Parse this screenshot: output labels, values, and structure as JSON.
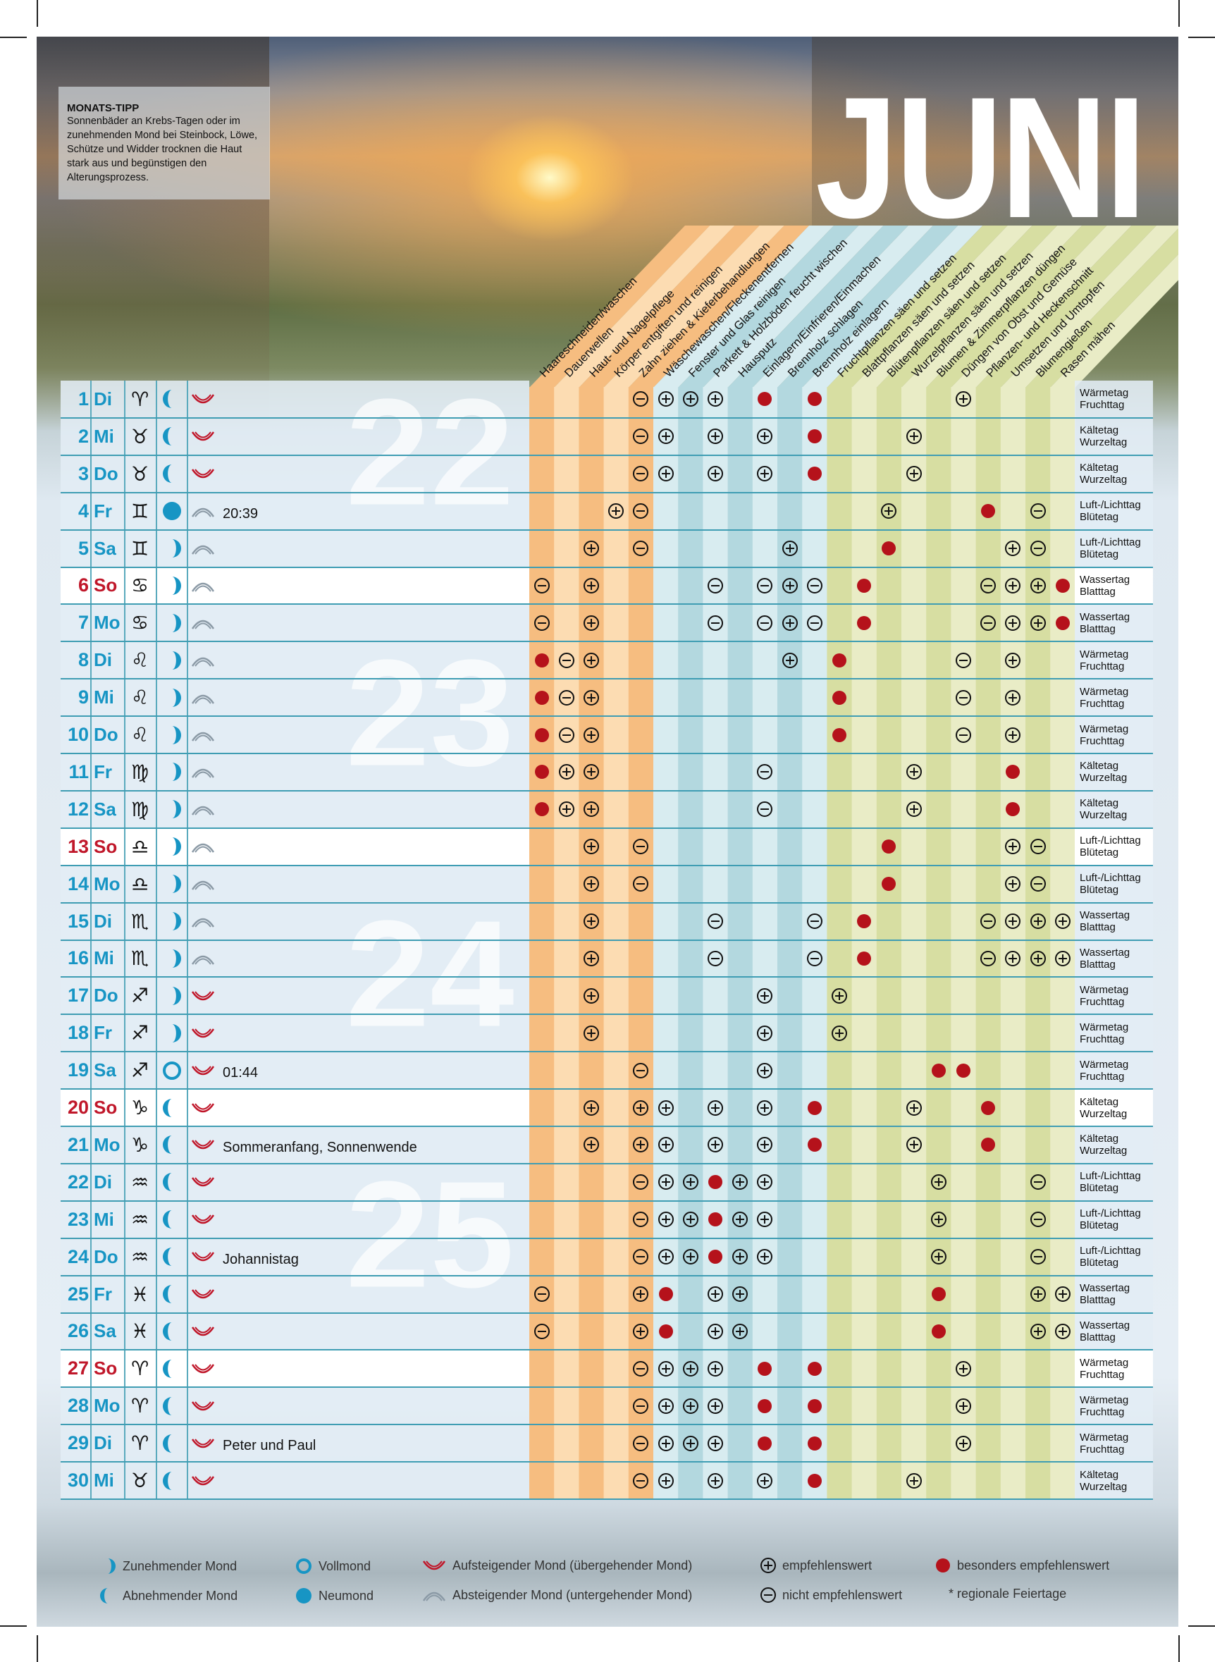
{
  "title": "JUNI",
  "tip": {
    "heading": "MONATS-TIPP",
    "text": "Sonnenbäder an Krebs-Tagen oder im zunehmenden Mond bei Steinbock, Löwe, Schütze und Widder trocknen die Haut stark aus und begünstigen den Alterungsprozess."
  },
  "colors": {
    "accent": "#1795c4",
    "sunday": "#c0172a",
    "red_dot": "#b5121b",
    "orange_dark": "#f6bd80",
    "orange_light": "#fcdcb2",
    "blue_dark": "#b3d8df",
    "blue_light": "#d8ecf0",
    "green_dark": "#d7dea2",
    "green_light": "#e9ecc6"
  },
  "columns": [
    {
      "label": "Haareschneiden/waschen",
      "group": "orange"
    },
    {
      "label": "Dauerwellen",
      "group": "orange"
    },
    {
      "label": "Haut- und Nagelpflege",
      "group": "orange"
    },
    {
      "label": "Körper entgiften und reinigen",
      "group": "orange"
    },
    {
      "label": "Zahn ziehen & Kieferbehandlungen",
      "group": "orange"
    },
    {
      "label": "Wäschewaschen/Fleckenentfernen",
      "group": "blue"
    },
    {
      "label": "Fenster und Glas reinigen",
      "group": "blue"
    },
    {
      "label": "Parkett & Holzböden feucht wischen",
      "group": "blue"
    },
    {
      "label": "Hausputz",
      "group": "blue"
    },
    {
      "label": "Einlagern/Einfrieren/Einmachen",
      "group": "blue"
    },
    {
      "label": "Brennholz schlagen",
      "group": "blue"
    },
    {
      "label": "Brennholz einlagern",
      "group": "blue"
    },
    {
      "label": "Fruchtpflanzen säen und setzen",
      "group": "green"
    },
    {
      "label": "Blattpflanzen säen und setzen",
      "group": "green"
    },
    {
      "label": "Blütenpflanzen säen und setzen",
      "group": "green"
    },
    {
      "label": "Wurzelpflanzen säen und setzen",
      "group": "green"
    },
    {
      "label": "Blumen & Zimmerpflanzen düngen",
      "group": "green"
    },
    {
      "label": "Düngen von Obst und Gemüse",
      "group": "green"
    },
    {
      "label": "Pflanzen- und Heckenschnitt",
      "group": "green"
    },
    {
      "label": "Umsetzen und Umtopfen",
      "group": "green"
    },
    {
      "label": "Blumengießen",
      "group": "green"
    },
    {
      "label": "Rasen mähen",
      "group": "green"
    }
  ],
  "mark_legend": {
    "+": "empfehlenswert",
    "-": "nicht empfehlenswert",
    "*": "besonders empfehlenswert",
    ".": "none"
  },
  "weeks": [
    {
      "number": "22",
      "row": 1
    },
    {
      "number": "23",
      "row": 8
    },
    {
      "number": "24",
      "row": 15
    },
    {
      "number": "25",
      "row": 22
    }
  ],
  "elements": {
    "fire": [
      "Wärmetag",
      "Fruchttag"
    ],
    "earth": [
      "Kältetag",
      "Wurzeltag"
    ],
    "air": [
      "Luft-/Lichttag",
      "Blütetag"
    ],
    "water": [
      "Wassertag",
      "Blatttag"
    ]
  },
  "days": [
    {
      "day": "1",
      "wd": "Di",
      "sign": "♈",
      "el": "fire",
      "moon": "waning",
      "dir": "up",
      "note": "",
      "marks": "....-+++.*.*.....+...."
    },
    {
      "day": "2",
      "wd": "Mi",
      "sign": "♉",
      "el": "earth",
      "moon": "waning",
      "dir": "up",
      "note": "",
      "marks": "....-+.+.+.*...+......"
    },
    {
      "day": "3",
      "wd": "Do",
      "sign": "♉",
      "el": "earth",
      "moon": "waning",
      "dir": "up",
      "note": "",
      "marks": "....-+.+.+.*...+......"
    },
    {
      "day": "4",
      "wd": "Fr",
      "sign": "♊",
      "el": "air",
      "moon": "new",
      "dir": "down",
      "note": "20:39",
      "marks": "...+-.........+...*.-."
    },
    {
      "day": "5",
      "wd": "Sa",
      "sign": "♊",
      "el": "air",
      "moon": "waxing",
      "dir": "down",
      "note": "",
      "marks": "..+.-.....+...*....+-."
    },
    {
      "day": "6",
      "wd": "So",
      "sunday": true,
      "sign": "♋",
      "el": "water",
      "moon": "waxing",
      "dir": "down",
      "note": "",
      "marks": "-.+....-.-+-.*....-++*"
    },
    {
      "day": "7",
      "wd": "Mo",
      "sign": "♋",
      "el": "water",
      "moon": "waxing",
      "dir": "down",
      "note": "",
      "marks": "-.+....-.-+-.*....-++*"
    },
    {
      "day": "8",
      "wd": "Di",
      "sign": "♌",
      "el": "fire",
      "moon": "waxing",
      "dir": "down",
      "note": "",
      "marks": "*-+.......+.*....-.+.."
    },
    {
      "day": "9",
      "wd": "Mi",
      "sign": "♌",
      "el": "fire",
      "moon": "waxing",
      "dir": "down",
      "note": "",
      "marks": "*-+.........*....-.+.."
    },
    {
      "day": "10",
      "wd": "Do",
      "sign": "♌",
      "el": "fire",
      "moon": "waxing",
      "dir": "down",
      "note": "",
      "marks": "*-+.........*....-.+.."
    },
    {
      "day": "11",
      "wd": "Fr",
      "sign": "♍",
      "el": "earth",
      "moon": "waxing",
      "dir": "down",
      "note": "",
      "marks": "*++......-.....+...*.."
    },
    {
      "day": "12",
      "wd": "Sa",
      "sign": "♍",
      "el": "earth",
      "moon": "waxing",
      "dir": "down",
      "note": "",
      "marks": "*++......-.....+...*.."
    },
    {
      "day": "13",
      "wd": "So",
      "sunday": true,
      "sign": "♎",
      "el": "air",
      "moon": "waxing",
      "dir": "down",
      "note": "",
      "marks": "..+.-.........*....+-."
    },
    {
      "day": "14",
      "wd": "Mo",
      "sign": "♎",
      "el": "air",
      "moon": "waxing",
      "dir": "down",
      "note": "",
      "marks": "..+.-.........*....+-."
    },
    {
      "day": "15",
      "wd": "Di",
      "sign": "♏",
      "el": "water",
      "moon": "waxing",
      "dir": "down",
      "note": "",
      "marks": "..+....-...-.*....-+++"
    },
    {
      "day": "16",
      "wd": "Mi",
      "sign": "♏",
      "el": "water",
      "moon": "waxing",
      "dir": "down",
      "note": "",
      "marks": "..+....-...-.*....-+++"
    },
    {
      "day": "17",
      "wd": "Do",
      "sign": "♐",
      "el": "fire",
      "moon": "waxing",
      "dir": "up",
      "note": "",
      "marks": "..+......+..+........."
    },
    {
      "day": "18",
      "wd": "Fr",
      "sign": "♐",
      "el": "fire",
      "moon": "waxing",
      "dir": "up",
      "note": "",
      "marks": "..+......+..+........."
    },
    {
      "day": "19",
      "wd": "Sa",
      "sign": "♐",
      "el": "fire",
      "moon": "full",
      "dir": "up",
      "note": "01:44",
      "marks": "....-....+......**...."
    },
    {
      "day": "20",
      "wd": "So",
      "sunday": true,
      "sign": "♑",
      "el": "earth",
      "moon": "waning",
      "dir": "up",
      "note": "",
      "marks": "..+.++.+.+.*...+..*..."
    },
    {
      "day": "21",
      "wd": "Mo",
      "sign": "♑",
      "el": "earth",
      "moon": "waning",
      "dir": "up",
      "note": "Sommeranfang, Sonnenwende",
      "marks": "..+.++.+.+.*...+..*..."
    },
    {
      "day": "22",
      "wd": "Di",
      "sign": "♒",
      "el": "air",
      "moon": "waning",
      "dir": "up",
      "note": "",
      "marks": "....-++*++......+...-."
    },
    {
      "day": "23",
      "wd": "Mi",
      "sign": "♒",
      "el": "air",
      "moon": "waning",
      "dir": "up",
      "note": "",
      "marks": "....-++*++......+...-."
    },
    {
      "day": "24",
      "wd": "Do",
      "sign": "♒",
      "el": "air",
      "moon": "waning",
      "dir": "up",
      "note": "Johannistag",
      "marks": "....-++*++......+...-."
    },
    {
      "day": "25",
      "wd": "Fr",
      "sign": "♓",
      "el": "water",
      "moon": "waning",
      "dir": "up",
      "note": "",
      "marks": "-...+*.++.......*...++"
    },
    {
      "day": "26",
      "wd": "Sa",
      "sign": "♓",
      "el": "water",
      "moon": "waning",
      "dir": "up",
      "note": "",
      "marks": "-...+*.++.......*...++"
    },
    {
      "day": "27",
      "wd": "So",
      "sunday": true,
      "sign": "♈",
      "el": "fire",
      "moon": "waning",
      "dir": "up",
      "note": "",
      "marks": "....-+++.*.*.....+...."
    },
    {
      "day": "28",
      "wd": "Mo",
      "sign": "♈",
      "el": "fire",
      "moon": "waning",
      "dir": "up",
      "note": "",
      "marks": "....-+++.*.*.....+...."
    },
    {
      "day": "29",
      "wd": "Di",
      "sign": "♈",
      "el": "fire",
      "moon": "waning",
      "dir": "up",
      "note": "Peter und Paul",
      "marks": "....-+++.*.*.....+...."
    },
    {
      "day": "30",
      "wd": "Mi",
      "sign": "♉",
      "el": "earth",
      "moon": "waning",
      "dir": "up",
      "note": "",
      "marks": "....-+.+.+.*...+......"
    }
  ],
  "legend": {
    "waxing": "Zunehmender Mond",
    "waning": "Abnehmender Mond",
    "full": "Vollmond",
    "new": "Neumond",
    "up": "Aufsteigender Mond (übergehender Mond)",
    "down": "Absteigender Mond (untergehender Mond)",
    "plus": "empfehlenswert",
    "minus": "nicht empfehlenswert",
    "dot": "besonders empfehlenswert",
    "holiday": "* regionale Feiertage"
  }
}
